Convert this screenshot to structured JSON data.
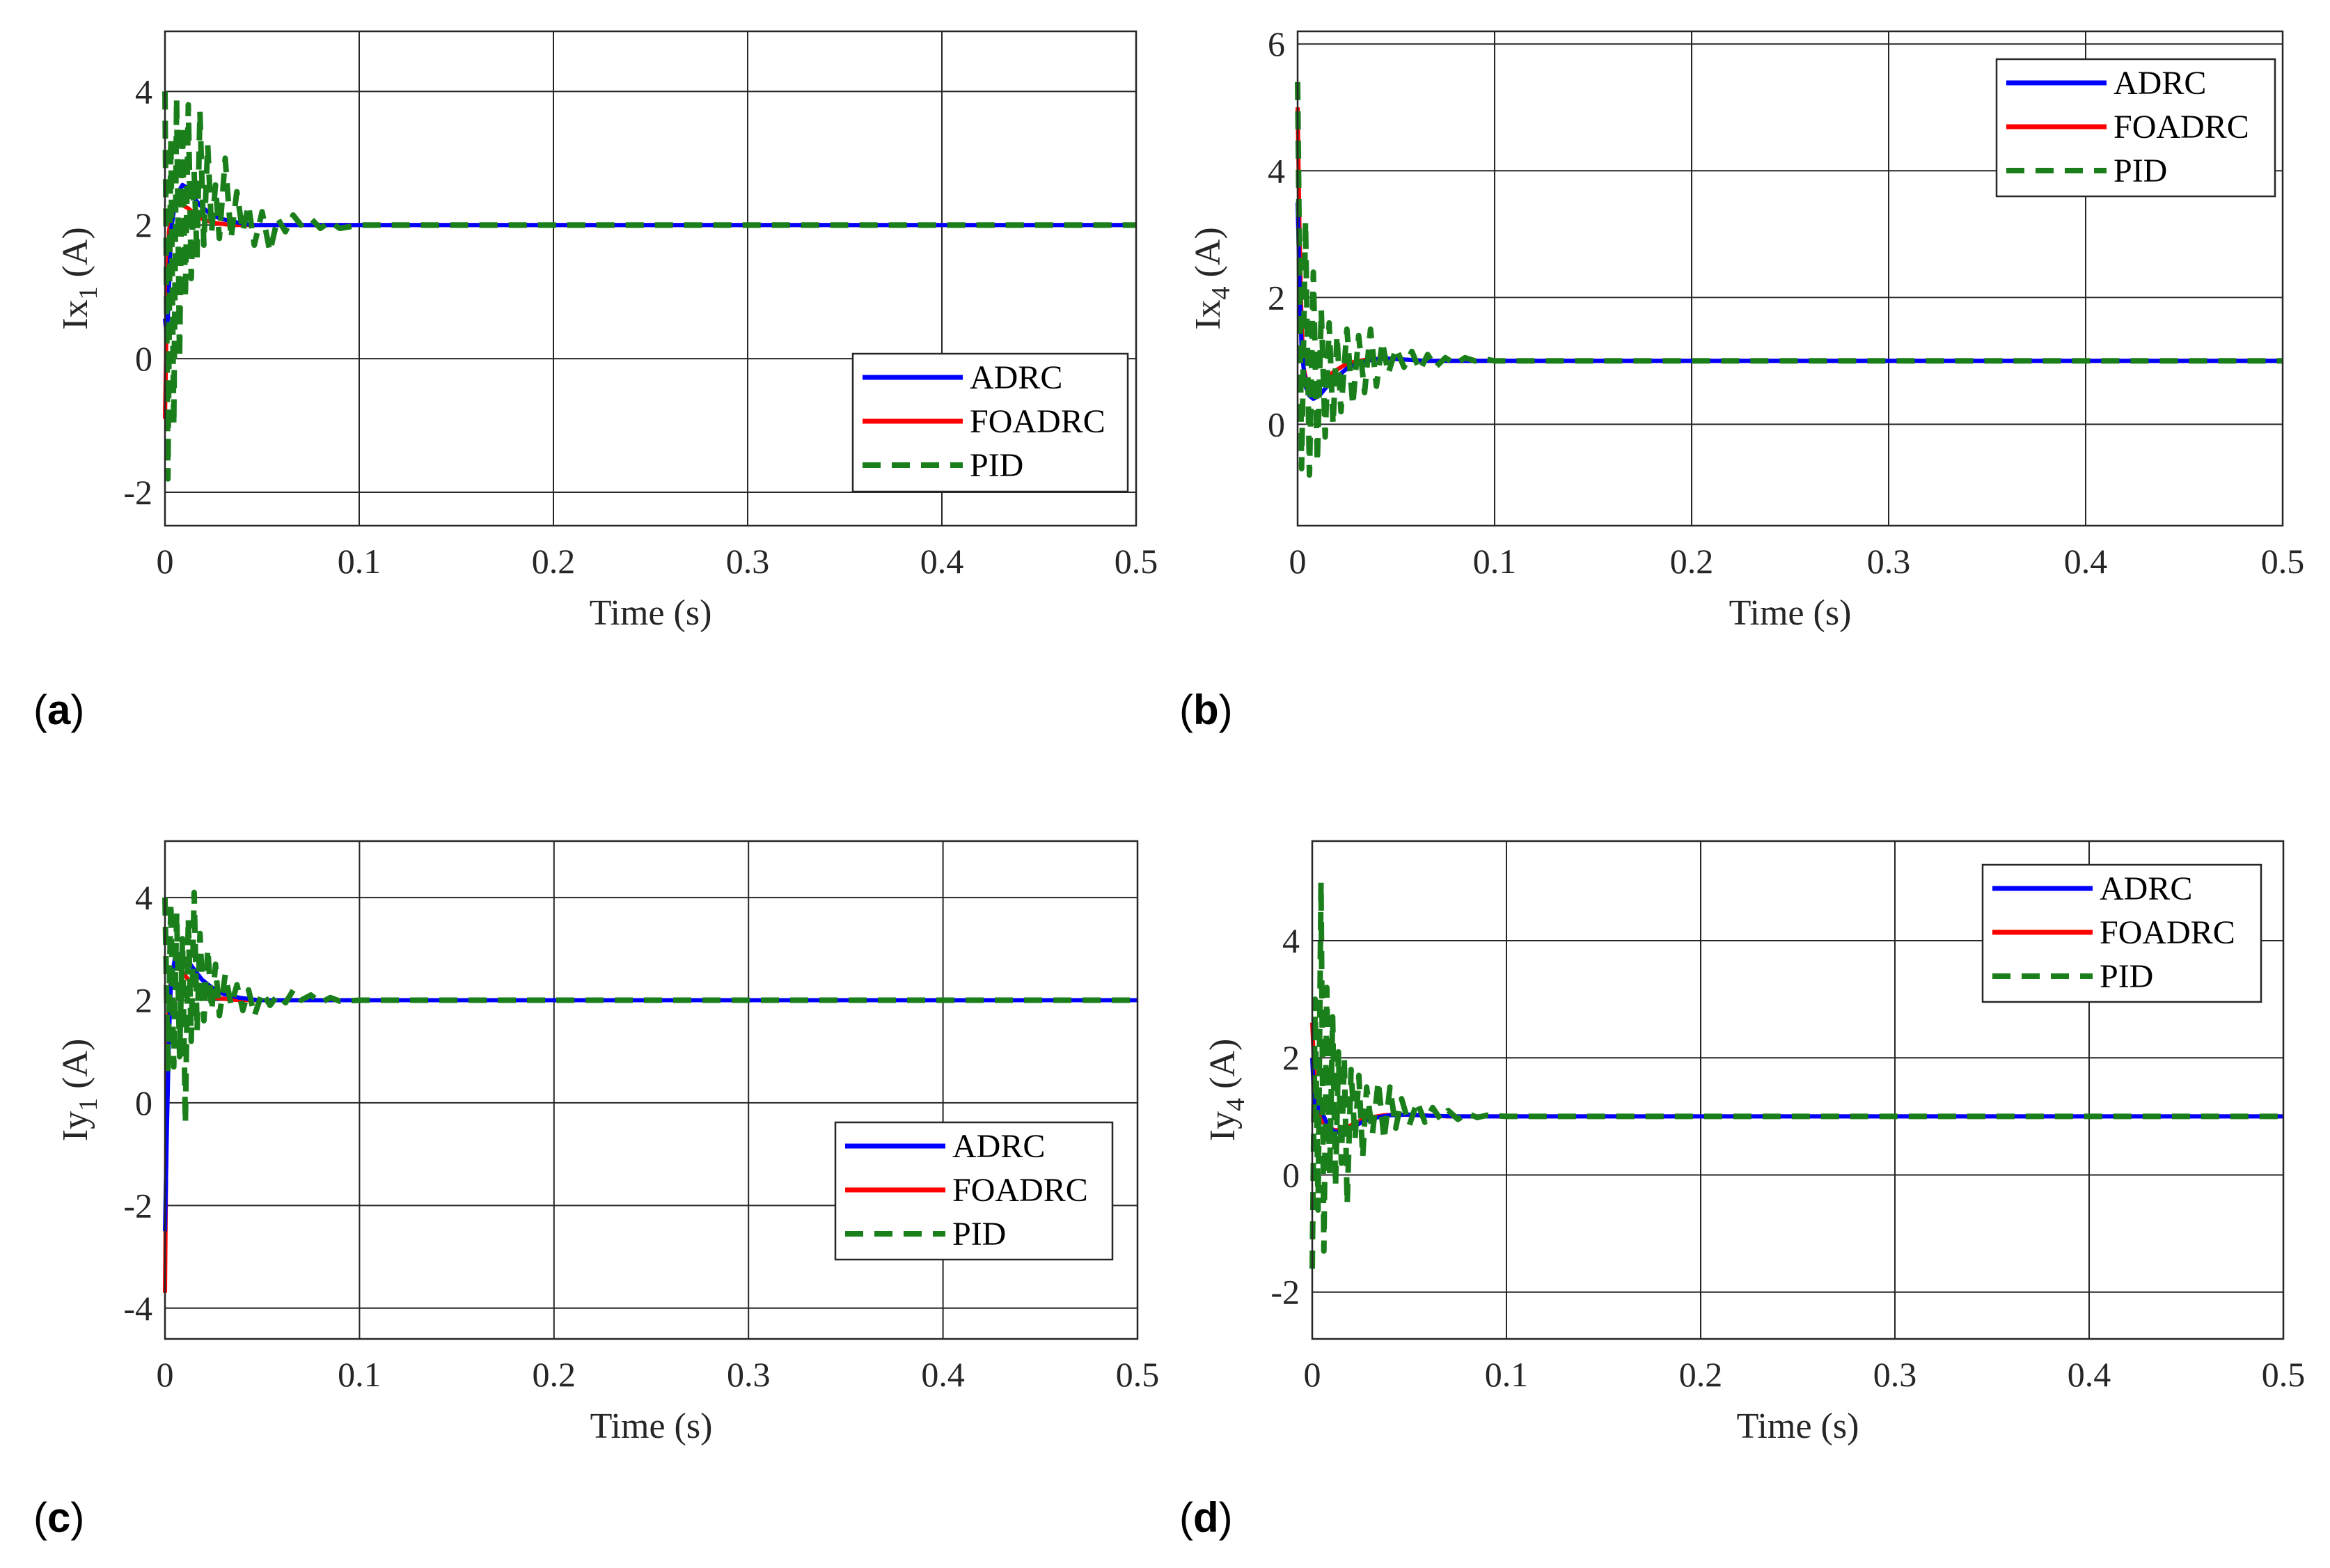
{
  "colors": {
    "adrc": "#0000ff",
    "foadrc": "#ff0000",
    "pid": "#1a7f1a",
    "grid": "#262626",
    "axis": "#262626"
  },
  "chart_data": [
    {
      "type": "line",
      "panel_label": "a",
      "xlabel": "Time (s)",
      "ylabel_main": "Ix",
      "ylabel_sub": "1",
      "ylabel_unit": "(A)",
      "xlim": [
        0,
        0.5
      ],
      "ylim": [
        -2.5,
        4.9
      ],
      "xticks": [
        0,
        0.1,
        0.2,
        0.3,
        0.4,
        0.5
      ],
      "xtick_labels": [
        "0",
        "0.1",
        "0.2",
        "0.3",
        "0.4",
        "0.5"
      ],
      "yticks": [
        -2,
        0,
        2,
        4
      ],
      "ytick_labels": [
        "-2",
        "0",
        "2",
        "4"
      ],
      "grid": true,
      "legend_position": "lower-right",
      "series": [
        {
          "name": "ADRC",
          "style": "solid",
          "color_key": "adrc",
          "x": [
            0,
            0.001,
            0.002,
            0.003,
            0.005,
            0.007,
            0.009,
            0.012,
            0.015,
            0.018,
            0.022,
            0.028,
            0.035,
            0.045,
            0.06,
            0.08,
            0.1,
            0.5
          ],
          "y": [
            0.6,
            0.3,
            1.0,
            1.9,
            2.3,
            2.5,
            2.6,
            2.55,
            2.4,
            2.3,
            2.2,
            2.1,
            2.05,
            2.0,
            2.0,
            2.0,
            2.0,
            2.0
          ]
        },
        {
          "name": "FOADRC",
          "style": "solid",
          "color_key": "foadrc",
          "x": [
            0,
            0.001,
            0.002,
            0.004,
            0.006,
            0.009,
            0.012,
            0.016,
            0.02,
            0.026,
            0.034,
            0.045,
            0.06,
            0.1,
            0.5
          ],
          "y": [
            -0.9,
            0.8,
            1.9,
            2.3,
            2.35,
            2.3,
            2.25,
            2.15,
            2.08,
            2.03,
            2.0,
            2.0,
            2.0,
            2.0,
            2.0
          ]
        },
        {
          "name": "PID",
          "style": "dashed",
          "color_key": "pid",
          "x": [
            0,
            0.0015,
            0.003,
            0.0045,
            0.006,
            0.0075,
            0.009,
            0.0105,
            0.012,
            0.0135,
            0.015,
            0.0165,
            0.018,
            0.02,
            0.022,
            0.024,
            0.026,
            0.028,
            0.031,
            0.034,
            0.037,
            0.04,
            0.043,
            0.046,
            0.05,
            0.054,
            0.058,
            0.062,
            0.066,
            0.07,
            0.075,
            0.08,
            0.085,
            0.09,
            0.1,
            0.5
          ],
          "y": [
            4.0,
            -1.8,
            3.3,
            -1.0,
            3.9,
            0.0,
            3.5,
            0.9,
            3.8,
            1.2,
            2.8,
            1.5,
            3.7,
            1.7,
            3.2,
            1.9,
            2.6,
            1.8,
            3.0,
            1.8,
            2.5,
            1.9,
            2.3,
            1.7,
            2.2,
            1.6,
            2.1,
            1.9,
            2.15,
            2.0,
            2.1,
            1.95,
            2.05,
            1.95,
            2.0,
            2.0
          ]
        }
      ]
    },
    {
      "type": "line",
      "panel_label": "b",
      "xlabel": "Time (s)",
      "ylabel_main": "Ix",
      "ylabel_sub": "4",
      "ylabel_unit": "(A)",
      "xlim": [
        0,
        0.5
      ],
      "ylim": [
        -1.6,
        6.2
      ],
      "xticks": [
        0,
        0.1,
        0.2,
        0.3,
        0.4,
        0.5
      ],
      "xtick_labels": [
        "0",
        "0.1",
        "0.2",
        "0.3",
        "0.4",
        "0.5"
      ],
      "yticks": [
        0,
        2,
        4,
        6
      ],
      "ytick_labels": [
        "0",
        "2",
        "4",
        "6"
      ],
      "grid": true,
      "legend_position": "top-right",
      "series": [
        {
          "name": "ADRC",
          "style": "solid",
          "color_key": "adrc",
          "x": [
            0,
            0.001,
            0.002,
            0.004,
            0.006,
            0.008,
            0.011,
            0.015,
            0.02,
            0.025,
            0.03,
            0.038,
            0.045,
            0.055,
            0.065,
            0.08,
            0.1,
            0.5
          ],
          "y": [
            3.5,
            2.2,
            1.2,
            0.6,
            0.45,
            0.4,
            0.45,
            0.6,
            0.75,
            0.88,
            0.95,
            1.02,
            1.04,
            1.02,
            1.0,
            1.0,
            1.0,
            1.0
          ]
        },
        {
          "name": "FOADRC",
          "style": "solid",
          "color_key": "foadrc",
          "x": [
            0,
            0.001,
            0.002,
            0.003,
            0.005,
            0.007,
            0.01,
            0.014,
            0.018,
            0.023,
            0.028,
            0.035,
            0.045,
            0.055,
            0.065,
            0.08,
            0.1,
            0.5
          ],
          "y": [
            5.0,
            3.0,
            1.6,
            0.9,
            0.6,
            0.55,
            0.6,
            0.7,
            0.82,
            0.92,
            0.98,
            1.02,
            1.04,
            1.02,
            1.0,
            1.0,
            1.0,
            1.0
          ]
        },
        {
          "name": "PID",
          "style": "dashed",
          "color_key": "pid",
          "x": [
            0,
            0.002,
            0.004,
            0.006,
            0.008,
            0.01,
            0.012,
            0.014,
            0.016,
            0.018,
            0.02,
            0.022,
            0.025,
            0.028,
            0.031,
            0.034,
            0.037,
            0.04,
            0.043,
            0.046,
            0.05,
            0.054,
            0.058,
            0.062,
            0.066,
            0.07,
            0.075,
            0.08,
            0.085,
            0.09,
            0.095,
            0.1,
            0.5
          ],
          "y": [
            5.4,
            -0.7,
            3.2,
            -0.8,
            2.4,
            -0.6,
            1.8,
            -0.2,
            1.6,
            0.0,
            1.4,
            0.2,
            1.5,
            0.3,
            1.4,
            0.5,
            1.5,
            0.6,
            1.3,
            0.8,
            1.2,
            0.9,
            1.15,
            0.85,
            1.1,
            0.9,
            1.05,
            0.95,
            1.05,
            1.0,
            1.03,
            1.0,
            1.0
          ]
        }
      ]
    },
    {
      "type": "line",
      "panel_label": "c",
      "xlabel": "Time (s)",
      "ylabel_main": "Iy",
      "ylabel_sub": "1",
      "ylabel_unit": "(A)",
      "xlim": [
        0,
        0.5
      ],
      "ylim": [
        -4.6,
        5.1
      ],
      "xticks": [
        0,
        0.1,
        0.2,
        0.3,
        0.4,
        0.5
      ],
      "xtick_labels": [
        "0",
        "0.1",
        "0.2",
        "0.3",
        "0.4",
        "0.5"
      ],
      "yticks": [
        -4,
        -2,
        0,
        2,
        4
      ],
      "ytick_labels": [
        "-4",
        "-2",
        "0",
        "2",
        "4"
      ],
      "grid": true,
      "legend_position": "lower-right",
      "series": [
        {
          "name": "ADRC",
          "style": "solid",
          "color_key": "adrc",
          "x": [
            0,
            0.001,
            0.002,
            0.003,
            0.005,
            0.007,
            0.009,
            0.012,
            0.015,
            0.019,
            0.024,
            0.03,
            0.038,
            0.048,
            0.06,
            0.08,
            0.1,
            0.5
          ],
          "y": [
            -2.5,
            -0.5,
            1.2,
            2.3,
            2.8,
            2.9,
            2.85,
            2.75,
            2.6,
            2.4,
            2.25,
            2.12,
            2.05,
            2.0,
            2.0,
            2.0,
            2.0,
            2.0
          ]
        },
        {
          "name": "FOADRC",
          "style": "solid",
          "color_key": "foadrc",
          "x": [
            0,
            0.001,
            0.002,
            0.004,
            0.006,
            0.009,
            0.012,
            0.016,
            0.02,
            0.026,
            0.034,
            0.045,
            0.06,
            0.1,
            0.5
          ],
          "y": [
            -3.7,
            0.5,
            2.1,
            2.6,
            2.65,
            2.55,
            2.4,
            2.25,
            2.12,
            2.05,
            2.01,
            2.0,
            2.0,
            2.0,
            2.0
          ]
        },
        {
          "name": "PID",
          "style": "dashed",
          "color_key": "pid",
          "x": [
            0,
            0.0015,
            0.003,
            0.0045,
            0.006,
            0.0075,
            0.009,
            0.0105,
            0.012,
            0.0135,
            0.015,
            0.0165,
            0.018,
            0.02,
            0.022,
            0.024,
            0.026,
            0.028,
            0.031,
            0.034,
            0.037,
            0.04,
            0.043,
            0.046,
            0.05,
            0.054,
            0.058,
            0.062,
            0.066,
            0.07,
            0.075,
            0.08,
            0.085,
            0.09,
            0.1,
            0.5
          ],
          "y": [
            4.0,
            0.6,
            3.9,
            0.7,
            3.7,
            0.9,
            3.2,
            -0.4,
            3.6,
            1.2,
            4.1,
            1.4,
            3.3,
            1.6,
            3.0,
            1.8,
            2.7,
            1.7,
            2.5,
            1.9,
            2.3,
            1.8,
            2.2,
            1.7,
            2.15,
            1.9,
            2.1,
            1.95,
            2.2,
            2.0,
            2.1,
            1.95,
            2.05,
            1.98,
            2.0,
            2.0
          ]
        }
      ]
    },
    {
      "type": "line",
      "panel_label": "d",
      "xlabel": "Time (s)",
      "ylabel_main": "Iy",
      "ylabel_sub": "4",
      "ylabel_unit": "(A)",
      "xlim": [
        0,
        0.5
      ],
      "ylim": [
        -2.8,
        5.7
      ],
      "xticks": [
        0,
        0.1,
        0.2,
        0.3,
        0.4,
        0.5
      ],
      "xtick_labels": [
        "0",
        "0.1",
        "0.2",
        "0.3",
        "0.4",
        "0.5"
      ],
      "yticks": [
        -2,
        0,
        2,
        4
      ],
      "ytick_labels": [
        "-2",
        "0",
        "2",
        "4"
      ],
      "grid": true,
      "legend_position": "top-right",
      "series": [
        {
          "name": "ADRC",
          "style": "solid",
          "color_key": "adrc",
          "x": [
            0,
            0.001,
            0.002,
            0.004,
            0.006,
            0.008,
            0.011,
            0.014,
            0.018,
            0.022,
            0.027,
            0.033,
            0.04,
            0.05,
            0.06,
            0.075,
            0.1,
            0.5
          ],
          "y": [
            2.0,
            1.2,
            0.9,
            1.3,
            1.0,
            0.85,
            0.75,
            0.72,
            0.76,
            0.84,
            0.92,
            0.98,
            1.02,
            1.03,
            1.01,
            1.0,
            1.0,
            1.0
          ]
        },
        {
          "name": "FOADRC",
          "style": "solid",
          "color_key": "foadrc",
          "x": [
            0,
            0.001,
            0.002,
            0.004,
            0.006,
            0.009,
            0.012,
            0.016,
            0.02,
            0.025,
            0.03,
            0.037,
            0.045,
            0.055,
            0.07,
            0.1,
            0.5
          ],
          "y": [
            2.6,
            1.8,
            1.3,
            1.0,
            0.88,
            0.8,
            0.76,
            0.78,
            0.85,
            0.93,
            0.98,
            1.02,
            1.03,
            1.02,
            1.0,
            1.0,
            1.0
          ]
        },
        {
          "name": "PID",
          "style": "dashed",
          "color_key": "pid",
          "x": [
            0,
            0.0015,
            0.003,
            0.0045,
            0.006,
            0.0075,
            0.009,
            0.0105,
            0.012,
            0.0135,
            0.015,
            0.0165,
            0.018,
            0.02,
            0.022,
            0.024,
            0.026,
            0.028,
            0.031,
            0.034,
            0.037,
            0.04,
            0.043,
            0.046,
            0.05,
            0.054,
            0.058,
            0.062,
            0.066,
            0.07,
            0.075,
            0.08,
            0.085,
            0.09,
            0.1,
            0.5
          ],
          "y": [
            -1.6,
            3.0,
            -0.6,
            5.0,
            -1.3,
            3.2,
            0.0,
            2.7,
            -0.2,
            2.1,
            0.2,
            2.0,
            -0.5,
            1.8,
            0.6,
            1.7,
            0.3,
            1.5,
            0.7,
            1.6,
            0.6,
            1.5,
            0.8,
            1.3,
            0.85,
            1.25,
            0.9,
            1.15,
            0.95,
            1.1,
            0.95,
            1.05,
            0.98,
            1.02,
            1.0,
            1.0
          ]
        }
      ]
    }
  ]
}
